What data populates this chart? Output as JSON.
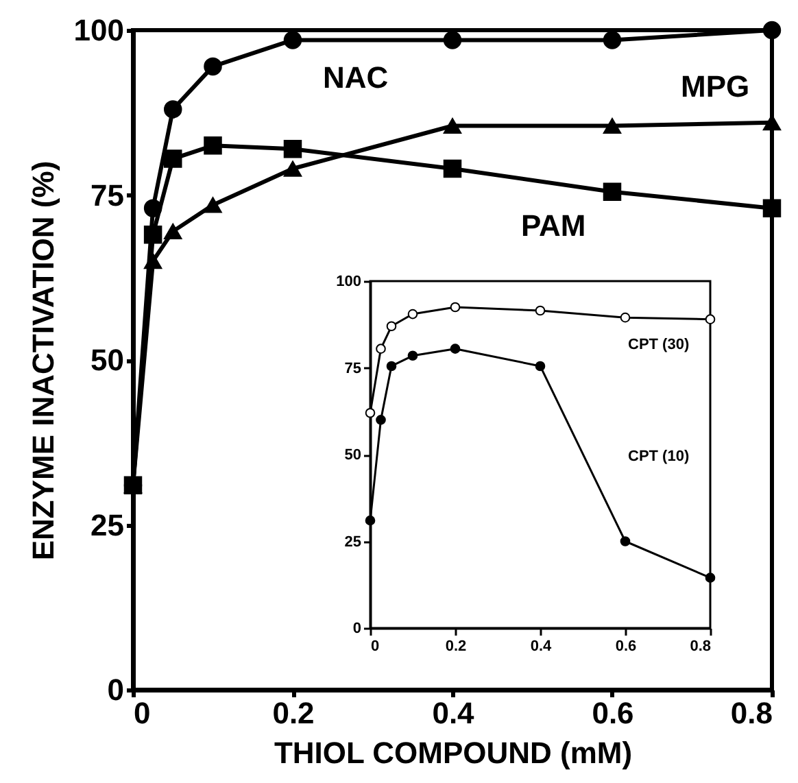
{
  "chart_data": [
    {
      "type": "line",
      "xlabel": "THIOL COMPOUND (mM)",
      "ylabel": "ENZYME INACTIVATION (%)",
      "x": [
        0,
        0.025,
        0.05,
        0.1,
        0.2,
        0.4,
        0.6,
        0.8
      ],
      "series": [
        {
          "name": "NAC",
          "color": "#000000",
          "marker": "circle",
          "values": [
            31,
            73,
            88,
            94.5,
            98.5,
            98.5,
            98.5,
            100
          ]
        },
        {
          "name": "MPG",
          "color": "#000000",
          "marker": "triangle",
          "values": [
            31,
            65,
            69.5,
            73.5,
            79,
            85.5,
            85.5,
            86
          ]
        },
        {
          "name": "PAM",
          "color": "#000000",
          "marker": "square",
          "values": [
            31,
            69,
            80.5,
            82.5,
            82,
            79,
            75.5,
            73
          ]
        }
      ],
      "xlim": [
        0,
        0.8
      ],
      "ylim": [
        0,
        100
      ],
      "xticks": [
        0,
        0.2,
        0.4,
        0.6,
        0.8
      ],
      "yticks": [
        0,
        25,
        50,
        75,
        100
      ]
    },
    {
      "type": "line",
      "x": [
        0,
        0.025,
        0.05,
        0.1,
        0.2,
        0.4,
        0.6,
        0.8
      ],
      "series": [
        {
          "name": "CPT (30)",
          "color": "#000000",
          "marker": "circle",
          "values": [
            62,
            80.5,
            87,
            90.5,
            92.5,
            91.5,
            89.5,
            89
          ]
        },
        {
          "name": "CPT (10)",
          "color": "#000000",
          "marker": "circle",
          "values": [
            31,
            60,
            75.5,
            78.5,
            80.5,
            75.5,
            25,
            14.5
          ]
        }
      ],
      "xlim": [
        0,
        0.8
      ],
      "ylim": [
        0,
        100
      ],
      "xticks": [
        0,
        0.2,
        0.4,
        0.6,
        0.8
      ],
      "yticks": [
        0,
        25,
        50,
        75,
        100
      ]
    }
  ]
}
